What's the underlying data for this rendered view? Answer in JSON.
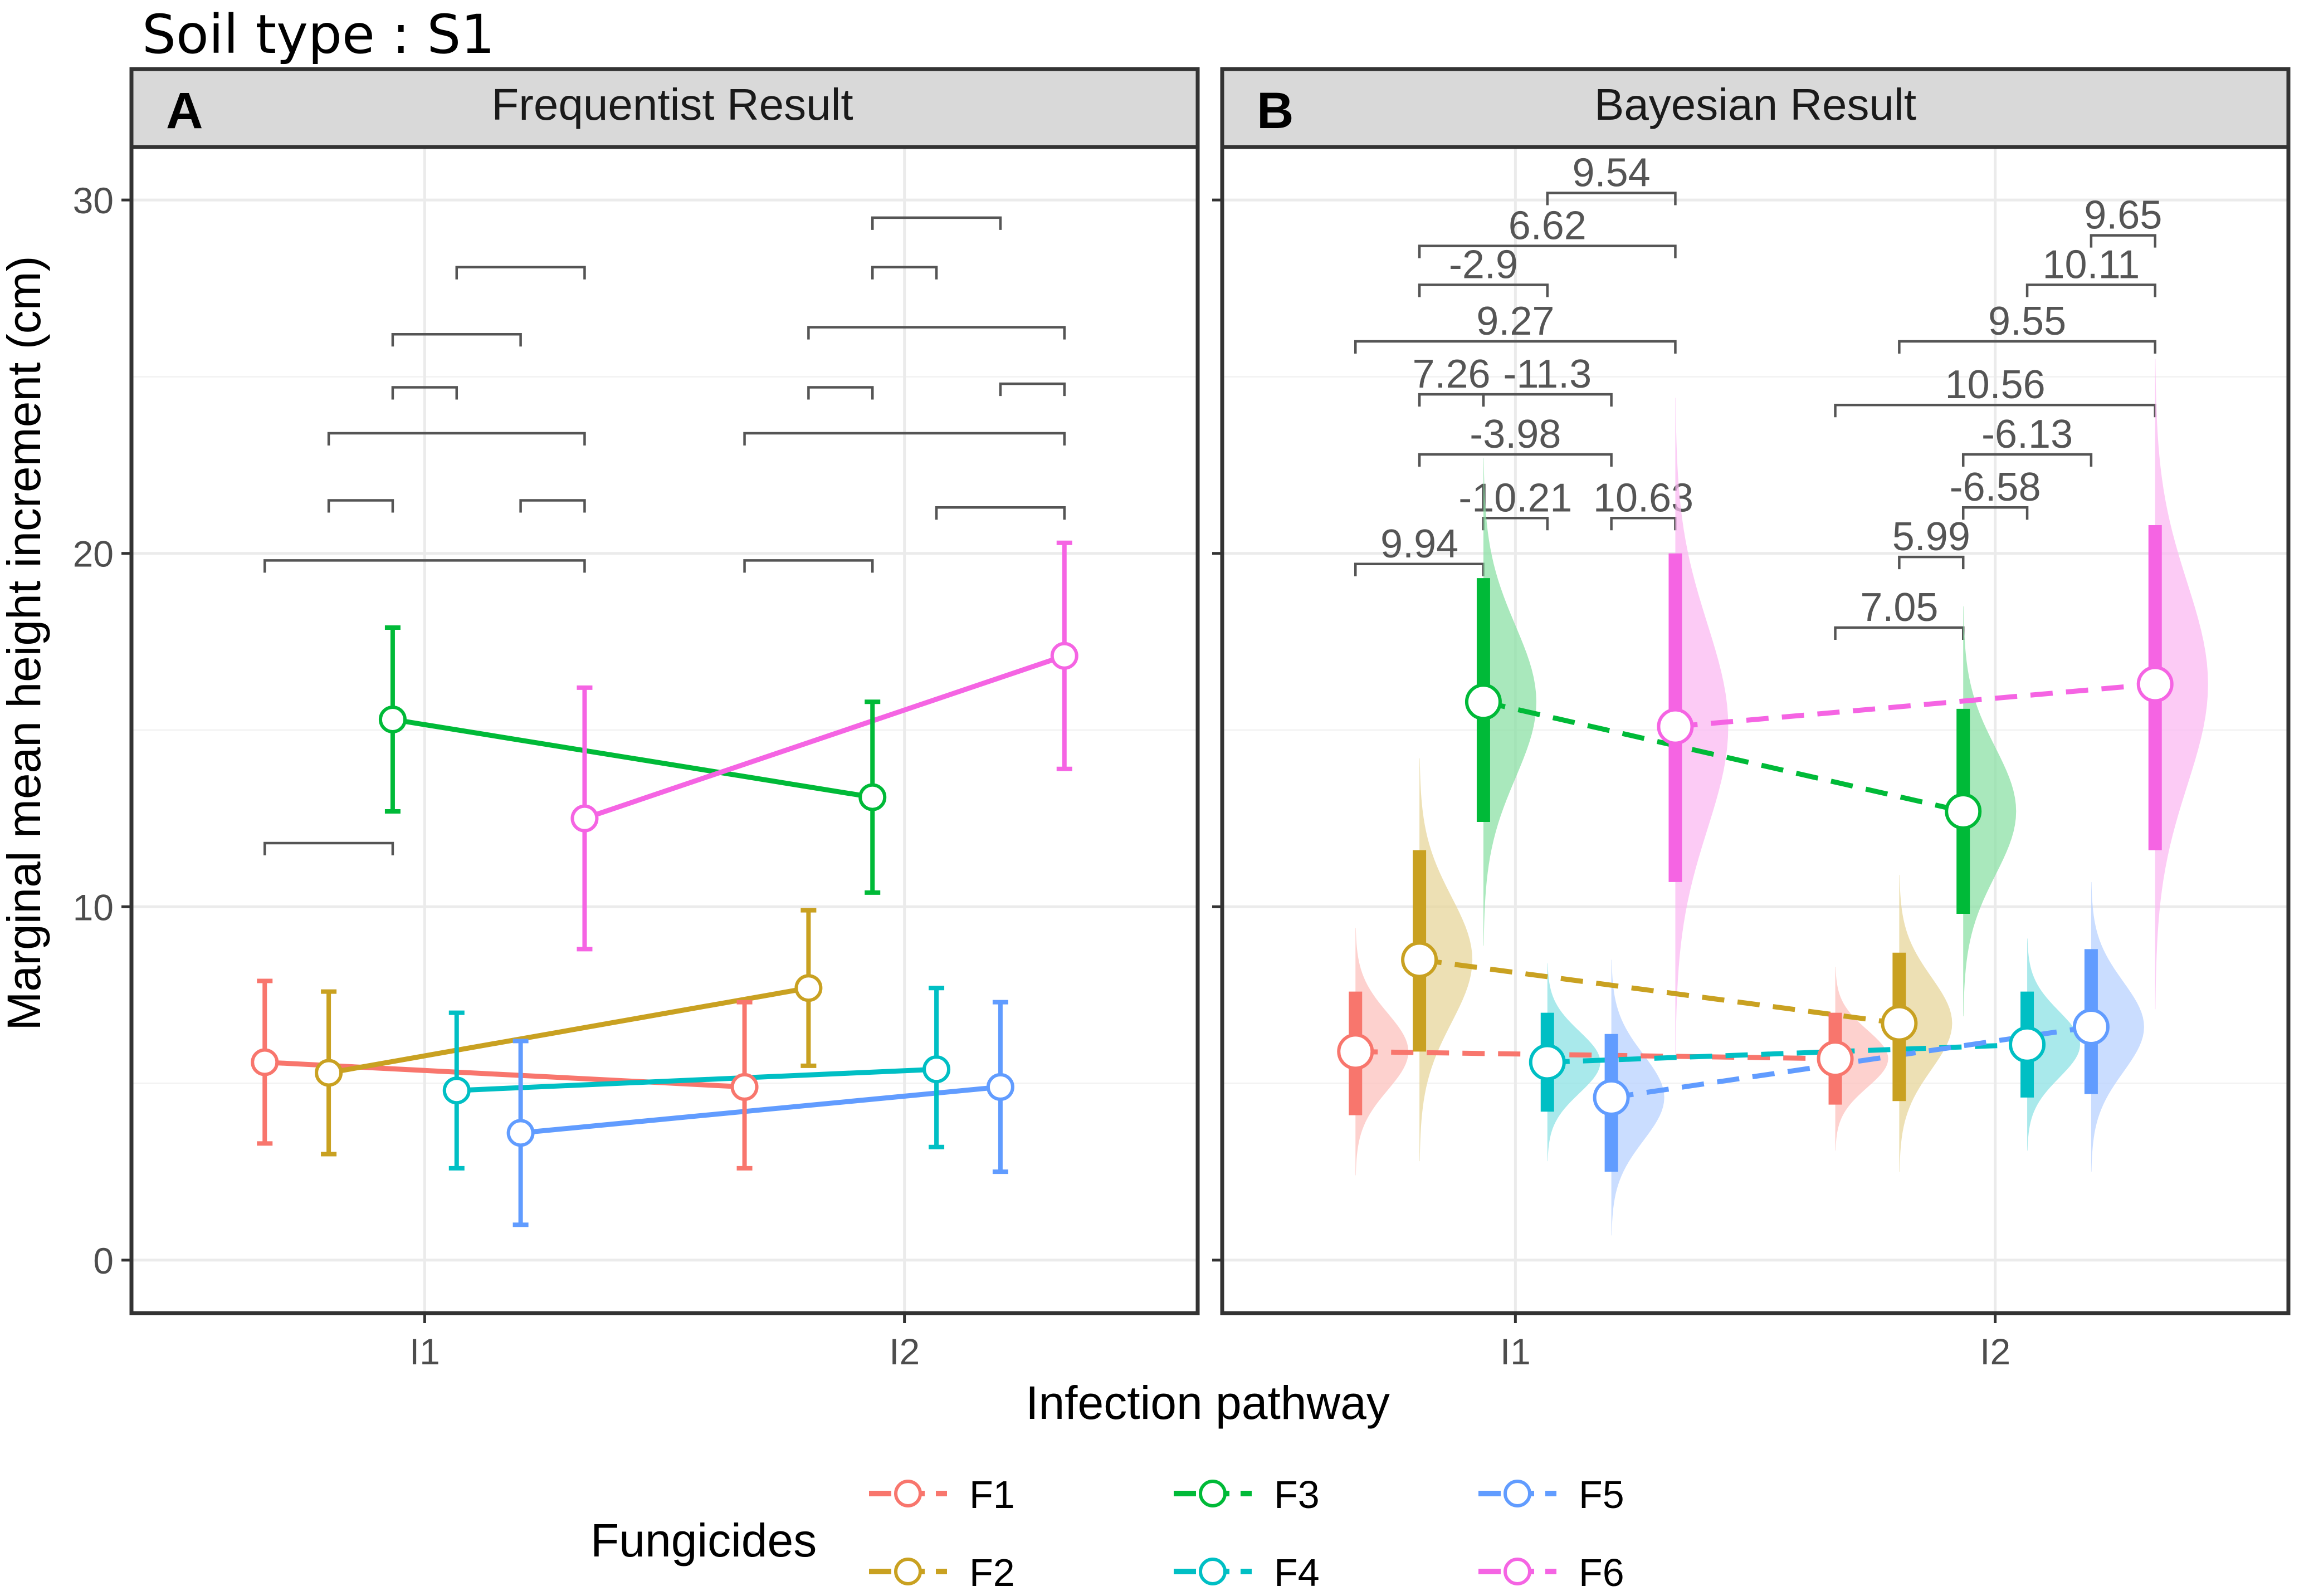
{
  "figure": {
    "title": "Soil type : S1",
    "ylabel": "Marginal mean height increment (cm)",
    "xlabel": "Infection pathway"
  },
  "legend": {
    "title": "Fungicides",
    "items": [
      {
        "label": "F1",
        "color": "#F8766D"
      },
      {
        "label": "F2",
        "color": "#C9A121"
      },
      {
        "label": "F3",
        "color": "#00BA38"
      },
      {
        "label": "F4",
        "color": "#00BFC4"
      },
      {
        "label": "F5",
        "color": "#619CFF"
      },
      {
        "label": "F6",
        "color": "#F564E3"
      }
    ]
  },
  "chart_data": [
    {
      "type": "line",
      "panel_tag": "A",
      "title": "Frequentist Result",
      "categories": [
        "I1",
        "I2"
      ],
      "ylim": [
        -1.5,
        31.5
      ],
      "yticks": [
        0,
        10,
        20,
        30
      ],
      "grid": true,
      "series": [
        {
          "name": "F1",
          "color": "#F8766D",
          "means": [
            5.6,
            4.9
          ],
          "lower": [
            3.3,
            2.6
          ],
          "upper": [
            7.9,
            7.3
          ]
        },
        {
          "name": "F2",
          "color": "#C9A121",
          "means": [
            5.3,
            7.7
          ],
          "lower": [
            3.0,
            5.5
          ],
          "upper": [
            7.6,
            9.9
          ]
        },
        {
          "name": "F3",
          "color": "#00BA38",
          "means": [
            15.3,
            13.1
          ],
          "lower": [
            12.7,
            10.4
          ],
          "upper": [
            17.9,
            15.8
          ]
        },
        {
          "name": "F4",
          "color": "#00BFC4",
          "means": [
            4.8,
            5.4
          ],
          "lower": [
            2.6,
            3.2
          ],
          "upper": [
            7.0,
            7.7
          ]
        },
        {
          "name": "F5",
          "color": "#619CFF",
          "means": [
            3.6,
            4.9
          ],
          "lower": [
            1.0,
            2.5
          ],
          "upper": [
            6.2,
            7.3
          ]
        },
        {
          "name": "F6",
          "color": "#F564E3",
          "means": [
            12.5,
            17.1
          ],
          "lower": [
            8.8,
            13.9
          ],
          "upper": [
            16.2,
            20.3
          ]
        }
      ],
      "brackets": [
        {
          "cat": "I1",
          "from": "F1",
          "to": "F3",
          "y": 11.8,
          "label": ""
        },
        {
          "cat": "I1",
          "from": "F1",
          "to": "F6",
          "y": 19.8,
          "label": ""
        },
        {
          "cat": "I1",
          "from": "F2",
          "to": "F3",
          "y": 21.5,
          "label": ""
        },
        {
          "cat": "I1",
          "from": "F5",
          "to": "F6",
          "y": 21.5,
          "label": ""
        },
        {
          "cat": "I1",
          "from": "F2",
          "to": "F6",
          "y": 23.4,
          "label": ""
        },
        {
          "cat": "I1",
          "from": "F3",
          "to": "F4",
          "y": 24.7,
          "label": ""
        },
        {
          "cat": "I1",
          "from": "F3",
          "to": "F5",
          "y": 26.2,
          "label": ""
        },
        {
          "cat": "I1",
          "from": "F4",
          "to": "F6",
          "y": 28.1,
          "label": ""
        },
        {
          "cat": "I2",
          "from": "F1",
          "to": "F3",
          "y": 19.8,
          "label": ""
        },
        {
          "cat": "I2",
          "from": "F4",
          "to": "F6",
          "y": 21.3,
          "label": ""
        },
        {
          "cat": "I2",
          "from": "F1",
          "to": "F6",
          "y": 23.4,
          "label": ""
        },
        {
          "cat": "I2",
          "from": "F2",
          "to": "F3",
          "y": 24.7,
          "label": ""
        },
        {
          "cat": "I2",
          "from": "F5",
          "to": "F6",
          "y": 24.8,
          "label": ""
        },
        {
          "cat": "I2",
          "from": "F2",
          "to": "F6",
          "y": 26.4,
          "label": ""
        },
        {
          "cat": "I2",
          "from": "F3",
          "to": "F4",
          "y": 28.1,
          "label": ""
        },
        {
          "cat": "I2",
          "from": "F3",
          "to": "F5",
          "y": 29.5,
          "label": ""
        }
      ]
    },
    {
      "type": "line",
      "panel_tag": "B",
      "title": "Bayesian Result",
      "categories": [
        "I1",
        "I2"
      ],
      "ylim": [
        -1.5,
        31.5
      ],
      "yticks": [
        0,
        10,
        20,
        30
      ],
      "grid": true,
      "series": [
        {
          "name": "F1",
          "color": "#F8766D",
          "means": [
            5.9,
            5.7
          ],
          "lower": [
            4.1,
            4.4
          ],
          "upper": [
            7.6,
            7.0
          ]
        },
        {
          "name": "F2",
          "color": "#C9A121",
          "means": [
            8.5,
            6.7
          ],
          "lower": [
            5.9,
            4.5
          ],
          "upper": [
            11.6,
            8.7
          ]
        },
        {
          "name": "F3",
          "color": "#00BA38",
          "means": [
            15.8,
            12.7
          ],
          "lower": [
            12.4,
            9.8
          ],
          "upper": [
            19.3,
            15.6
          ]
        },
        {
          "name": "F4",
          "color": "#00BFC4",
          "means": [
            5.6,
            6.1
          ],
          "lower": [
            4.2,
            4.6
          ],
          "upper": [
            7.0,
            7.6
          ]
        },
        {
          "name": "F5",
          "color": "#619CFF",
          "means": [
            4.6,
            6.6
          ],
          "lower": [
            2.5,
            4.7
          ],
          "upper": [
            6.4,
            8.8
          ]
        },
        {
          "name": "F6",
          "color": "#F564E3",
          "means": [
            15.1,
            16.3
          ],
          "lower": [
            10.7,
            11.6
          ],
          "upper": [
            20.0,
            20.8
          ]
        }
      ],
      "brackets": [
        {
          "cat": "I1",
          "from": "F1",
          "to": "F3",
          "y": 19.7,
          "label": "9.94"
        },
        {
          "cat": "I1",
          "from": "F3",
          "to": "F4",
          "y": 21.0,
          "label": "-10.21"
        },
        {
          "cat": "I1",
          "from": "F5",
          "to": "F6",
          "y": 21.0,
          "label": "10.63"
        },
        {
          "cat": "I1",
          "from": "F2",
          "to": "F5",
          "y": 22.8,
          "label": "-3.98"
        },
        {
          "cat": "I1",
          "from": "F2",
          "to": "F3",
          "y": 24.5,
          "label": "7.26"
        },
        {
          "cat": "I1",
          "from": "F3",
          "to": "F5",
          "y": 24.5,
          "label": "-11.3"
        },
        {
          "cat": "I1",
          "from": "F1",
          "to": "F6",
          "y": 26.0,
          "label": "9.27"
        },
        {
          "cat": "I1",
          "from": "F2",
          "to": "F4",
          "y": 27.6,
          "label": "-2.9"
        },
        {
          "cat": "I1",
          "from": "F2",
          "to": "F6",
          "y": 28.7,
          "label": "6.62"
        },
        {
          "cat": "I1",
          "from": "F4",
          "to": "F6",
          "y": 30.2,
          "label": "9.54"
        },
        {
          "cat": "I2",
          "from": "F1",
          "to": "F3",
          "y": 17.9,
          "label": "7.05"
        },
        {
          "cat": "I2",
          "from": "F2",
          "to": "F3",
          "y": 19.9,
          "label": "5.99"
        },
        {
          "cat": "I2",
          "from": "F3",
          "to": "F4",
          "y": 21.3,
          "label": "-6.58"
        },
        {
          "cat": "I2",
          "from": "F3",
          "to": "F5",
          "y": 22.8,
          "label": "-6.13"
        },
        {
          "cat": "I2",
          "from": "F1",
          "to": "F6",
          "y": 24.2,
          "label": "10.56"
        },
        {
          "cat": "I2",
          "from": "F2",
          "to": "F6",
          "y": 26.0,
          "label": "9.55"
        },
        {
          "cat": "I2",
          "from": "F4",
          "to": "F6",
          "y": 27.6,
          "label": "10.11"
        },
        {
          "cat": "I2",
          "from": "F5",
          "to": "F6",
          "y": 29.0,
          "label": "9.65"
        }
      ]
    }
  ]
}
